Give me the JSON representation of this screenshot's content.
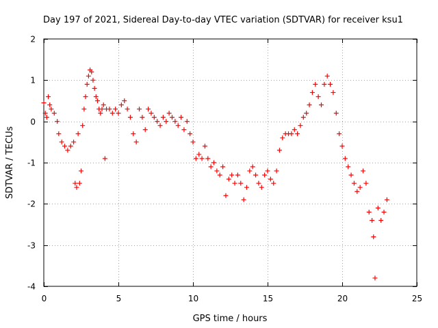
{
  "chart_data": {
    "type": "scatter",
    "title": "Day 197 of 2021, Sidereal Day-to-day VTEC variation (SDTVAR) for receiver ksu1",
    "xlabel": "GPS time / hours",
    "ylabel": "SDTVAR / TECUs",
    "xlim": [
      0,
      25
    ],
    "ylim": [
      -4,
      2
    ],
    "x_ticks": [
      0,
      5,
      10,
      15,
      20,
      25
    ],
    "y_ticks": [
      -4,
      -3,
      -2,
      -1,
      0,
      1,
      2
    ],
    "grid": true,
    "marker": "+",
    "color": "#ff0000",
    "series": [
      {
        "name": "ksu1",
        "x": [
          0.0,
          0.1,
          0.2,
          0.3,
          0.4,
          0.5,
          0.7,
          0.9,
          1.0,
          1.2,
          1.4,
          1.6,
          1.8,
          2.0,
          2.1,
          2.2,
          2.3,
          2.4,
          2.5,
          2.6,
          2.7,
          2.8,
          2.9,
          3.0,
          3.1,
          3.2,
          3.3,
          3.4,
          3.5,
          3.6,
          3.7,
          3.8,
          3.9,
          4.0,
          4.1,
          4.2,
          4.4,
          4.6,
          4.8,
          5.0,
          5.2,
          5.4,
          5.6,
          5.8,
          6.0,
          6.2,
          6.4,
          6.6,
          6.8,
          7.0,
          7.2,
          7.4,
          7.6,
          7.8,
          8.0,
          8.2,
          8.4,
          8.6,
          8.8,
          9.0,
          9.2,
          9.4,
          9.6,
          9.8,
          10.0,
          10.2,
          10.4,
          10.6,
          10.8,
          11.0,
          11.2,
          11.4,
          11.6,
          11.8,
          12.0,
          12.2,
          12.4,
          12.6,
          12.8,
          13.0,
          13.2,
          13.4,
          13.6,
          13.8,
          14.0,
          14.2,
          14.4,
          14.6,
          14.8,
          15.0,
          15.2,
          15.4,
          15.6,
          15.8,
          16.0,
          16.2,
          16.4,
          16.6,
          16.8,
          17.0,
          17.2,
          17.4,
          17.6,
          17.8,
          18.0,
          18.2,
          18.4,
          18.6,
          18.8,
          19.0,
          19.2,
          19.4,
          19.6,
          19.8,
          20.0,
          20.2,
          20.4,
          20.6,
          20.8,
          21.0,
          21.2,
          21.4,
          21.6,
          21.8,
          22.0,
          22.1,
          22.2,
          22.4,
          22.6,
          22.8,
          23.0
        ],
        "y": [
          0.45,
          0.2,
          0.1,
          0.6,
          0.4,
          0.3,
          0.2,
          0.0,
          -0.3,
          -0.5,
          -0.6,
          -0.7,
          -0.6,
          -0.5,
          -1.5,
          -1.6,
          -0.3,
          -1.5,
          -1.2,
          -0.1,
          0.3,
          0.6,
          0.9,
          1.1,
          1.25,
          1.2,
          1.0,
          0.8,
          0.6,
          0.5,
          0.3,
          0.2,
          0.3,
          0.4,
          -0.9,
          0.3,
          0.3,
          0.2,
          0.3,
          0.2,
          0.4,
          0.5,
          0.3,
          0.1,
          -0.3,
          -0.5,
          0.3,
          0.1,
          -0.2,
          0.3,
          0.2,
          0.1,
          0.0,
          -0.1,
          0.1,
          0.0,
          0.2,
          0.1,
          0.0,
          -0.1,
          0.1,
          -0.2,
          0.0,
          -0.3,
          -0.5,
          -0.9,
          -0.8,
          -0.9,
          -0.6,
          -0.9,
          -1.1,
          -1.0,
          -1.2,
          -1.3,
          -1.1,
          -1.8,
          -1.4,
          -1.3,
          -1.5,
          -1.3,
          -1.5,
          -1.9,
          -1.6,
          -1.2,
          -1.1,
          -1.3,
          -1.5,
          -1.6,
          -1.3,
          -1.2,
          -1.4,
          -1.5,
          -1.2,
          -0.7,
          -0.4,
          -0.3,
          -0.3,
          -0.3,
          -0.2,
          -0.3,
          -0.1,
          0.1,
          0.2,
          0.4,
          0.7,
          0.9,
          0.6,
          0.4,
          0.9,
          1.1,
          0.9,
          0.7,
          0.2,
          -0.3,
          -0.6,
          -0.9,
          -1.1,
          -1.3,
          -1.5,
          -1.7,
          -1.6,
          -1.2,
          -1.5,
          -2.2,
          -2.4,
          -2.8,
          -3.8,
          -2.1,
          -2.4,
          -2.2,
          -1.9
        ]
      }
    ]
  }
}
